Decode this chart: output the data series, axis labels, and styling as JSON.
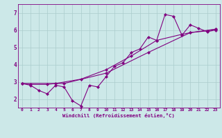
{
  "xlabel": "Windchill (Refroidissement éolien,°C)",
  "xlim": [
    -0.5,
    23.5
  ],
  "ylim": [
    1.5,
    7.5
  ],
  "yticks": [
    2,
    3,
    4,
    5,
    6,
    7
  ],
  "xticks": [
    0,
    1,
    2,
    3,
    4,
    5,
    6,
    7,
    8,
    9,
    10,
    11,
    12,
    13,
    14,
    15,
    16,
    17,
    18,
    19,
    20,
    21,
    22,
    23
  ],
  "bg_color": "#cce8e8",
  "line_color": "#800080",
  "grid_color": "#aacccc",
  "line1_x": [
    0,
    1,
    2,
    3,
    4,
    5,
    6,
    7,
    8,
    9,
    10,
    11,
    12,
    13,
    14,
    15,
    16,
    17,
    18,
    19,
    20,
    21,
    22,
    23
  ],
  "line1_y": [
    2.9,
    2.8,
    2.5,
    2.3,
    2.8,
    2.7,
    1.9,
    1.6,
    2.8,
    2.7,
    3.3,
    3.9,
    4.1,
    4.7,
    4.9,
    5.6,
    5.4,
    6.9,
    6.8,
    5.7,
    6.3,
    6.1,
    5.9,
    6.0
  ],
  "line2_x": [
    0,
    1,
    3,
    4,
    7,
    10,
    13,
    16,
    19,
    20,
    22,
    23
  ],
  "line2_y": [
    2.9,
    2.85,
    2.85,
    2.9,
    3.15,
    3.7,
    4.5,
    5.4,
    5.75,
    5.85,
    5.95,
    6.05
  ],
  "line3_x": [
    0,
    5,
    10,
    15,
    20,
    23
  ],
  "line3_y": [
    2.9,
    2.9,
    3.5,
    4.7,
    5.85,
    6.05
  ]
}
